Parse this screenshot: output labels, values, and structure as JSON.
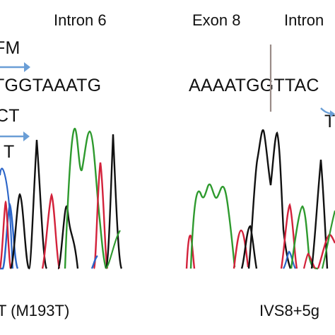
{
  "left_panel": {
    "region_label": "Intron 6",
    "annotation_top": "FM",
    "sequence": "TGGTAAATG",
    "sequence_mut_fragment": "CT",
    "annotation_mid": "T",
    "caption": "T (M193T)"
  },
  "right_panel": {
    "exon_label": "Exon 8",
    "intron_label": "Intron",
    "sequence": "AAAATGGTTAC",
    "annotation_mid": "T",
    "caption": "IVS8+5g"
  },
  "trace_colors": {
    "A": "#2e9a2e",
    "C": "#2a64c8",
    "G": "#111111",
    "T": "#d3223b"
  },
  "arrow_color": "#6a9ed6",
  "boundary_color": "#9a8c88"
}
